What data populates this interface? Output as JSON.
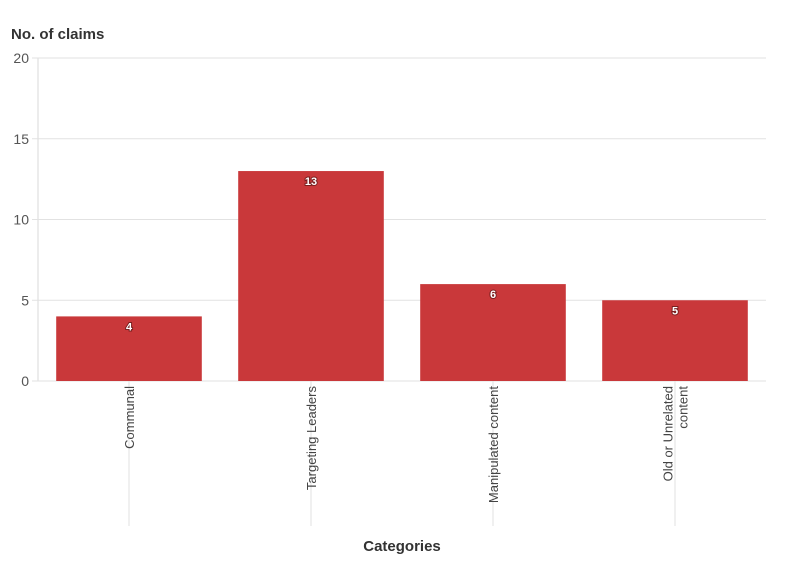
{
  "chart_data": {
    "type": "bar",
    "title": "",
    "xlabel": "Categories",
    "ylabel": "No. of claims",
    "categories": [
      "Communal",
      "Targeting Leaders",
      "Manipulated content",
      "Old or Unrelated content"
    ],
    "category_lines": [
      [
        "Communal"
      ],
      [
        "Targeting Leaders"
      ],
      [
        "Manipulated content"
      ],
      [
        "Old or Unrelated",
        "content"
      ]
    ],
    "values": [
      4,
      13,
      6,
      5
    ],
    "ylim": [
      0,
      20
    ],
    "yticks": [
      0,
      5,
      10,
      15,
      20
    ],
    "grid": true,
    "data_labels": true,
    "bar_color": "#c9383a"
  }
}
